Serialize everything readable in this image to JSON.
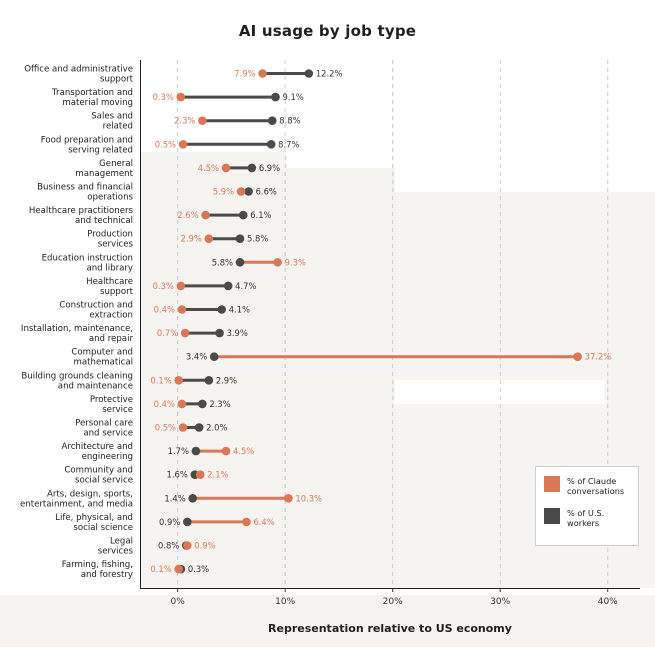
{
  "chart_data": {
    "type": "dumbbell",
    "title": "AI usage by job type",
    "xlabel": "Representation relative to US economy",
    "ylabel": "",
    "xlim": [
      -3.5,
      43
    ],
    "ticks": [
      0,
      10,
      20,
      30,
      40
    ],
    "tick_labels": [
      "0%",
      "10%",
      "20%",
      "30%",
      "40%"
    ],
    "grid": "vertical dashed",
    "legend_position": "bottom-right",
    "colors": {
      "claude": "#d97757",
      "workers": "#4a4a4a"
    },
    "series": [
      {
        "key": "claude",
        "name": "% of Claude conversations"
      },
      {
        "key": "workers",
        "name": "% of U.S. workers"
      }
    ],
    "categories": [
      {
        "label": [
          "Office and administrative",
          "support"
        ],
        "claude": 7.9,
        "workers": 12.2,
        "claude_label": "7.9%",
        "workers_label": "12.2%"
      },
      {
        "label": [
          "Transportation and",
          "material moving"
        ],
        "claude": 0.3,
        "workers": 9.1,
        "claude_label": "0.3%",
        "workers_label": "9.1%"
      },
      {
        "label": [
          "Sales and",
          "related"
        ],
        "claude": 2.3,
        "workers": 8.8,
        "claude_label": "2.3%",
        "workers_label": "8.8%"
      },
      {
        "label": [
          "Food preparation and",
          "serving related"
        ],
        "claude": 0.5,
        "workers": 8.7,
        "claude_label": "0.5%",
        "workers_label": "8.7%"
      },
      {
        "label": [
          "General",
          "management"
        ],
        "claude": 4.5,
        "workers": 6.9,
        "claude_label": "4.5%",
        "workers_label": "6.9%"
      },
      {
        "label": [
          "Business and financial",
          "operations"
        ],
        "claude": 5.9,
        "workers": 6.6,
        "claude_label": "5.9%",
        "workers_label": "6.6%"
      },
      {
        "label": [
          "Healthcare practitioners",
          "and technical"
        ],
        "claude": 2.6,
        "workers": 6.1,
        "claude_label": "2.6%",
        "workers_label": "6.1%"
      },
      {
        "label": [
          "Production",
          "services"
        ],
        "claude": 2.9,
        "workers": 5.8,
        "claude_label": "2.9%",
        "workers_label": "5.8%"
      },
      {
        "label": [
          "Education instruction",
          "and library"
        ],
        "claude": 9.3,
        "workers": 5.8,
        "claude_label": "9.3%",
        "workers_label": "5.8%"
      },
      {
        "label": [
          "Healthcare",
          "support"
        ],
        "claude": 0.3,
        "workers": 4.7,
        "claude_label": "0.3%",
        "workers_label": "4.7%"
      },
      {
        "label": [
          "Construction and",
          "extraction"
        ],
        "claude": 0.4,
        "workers": 4.1,
        "claude_label": "0.4%",
        "workers_label": "4.1%"
      },
      {
        "label": [
          "Installation, maintenance,",
          "and repair"
        ],
        "claude": 0.7,
        "workers": 3.9,
        "claude_label": "0.7%",
        "workers_label": "3.9%"
      },
      {
        "label": [
          "Computer and",
          "mathematical"
        ],
        "claude": 37.2,
        "workers": 3.4,
        "claude_label": "37.2%",
        "workers_label": "3.4%"
      },
      {
        "label": [
          "Building grounds cleaning",
          "and maintenance"
        ],
        "claude": 0.1,
        "workers": 2.9,
        "claude_label": "0.1%",
        "workers_label": "2.9%"
      },
      {
        "label": [
          "Protective",
          "service"
        ],
        "claude": 0.4,
        "workers": 2.3,
        "claude_label": "0.4%",
        "workers_label": "2.3%"
      },
      {
        "label": [
          "Personal care",
          "and service"
        ],
        "claude": 0.5,
        "workers": 2.0,
        "claude_label": "0.5%",
        "workers_label": "2.0%"
      },
      {
        "label": [
          "Architecture and",
          "engineering"
        ],
        "claude": 4.5,
        "workers": 1.7,
        "claude_label": "4.5%",
        "workers_label": "1.7%"
      },
      {
        "label": [
          "Community and",
          "social service"
        ],
        "claude": 2.1,
        "workers": 1.6,
        "claude_label": "2.1%",
        "workers_label": "1.6%"
      },
      {
        "label": [
          "Arts, design, sports,",
          "entertainment, and media"
        ],
        "claude": 10.3,
        "workers": 1.4,
        "claude_label": "10.3%",
        "workers_label": "1.4%"
      },
      {
        "label": [
          "Life, physical, and",
          "social science"
        ],
        "claude": 6.4,
        "workers": 0.9,
        "claude_label": "6.4%",
        "workers_label": "0.9%"
      },
      {
        "label": [
          "Legal",
          "services"
        ],
        "claude": 0.9,
        "workers": 0.8,
        "claude_label": "0.9%",
        "workers_label": "0.8%"
      },
      {
        "label": [
          "Farming, fishing,",
          "and forestry"
        ],
        "claude": 0.1,
        "workers": 0.3,
        "claude_label": "0.1%",
        "workers_label": "0.3%"
      }
    ]
  }
}
